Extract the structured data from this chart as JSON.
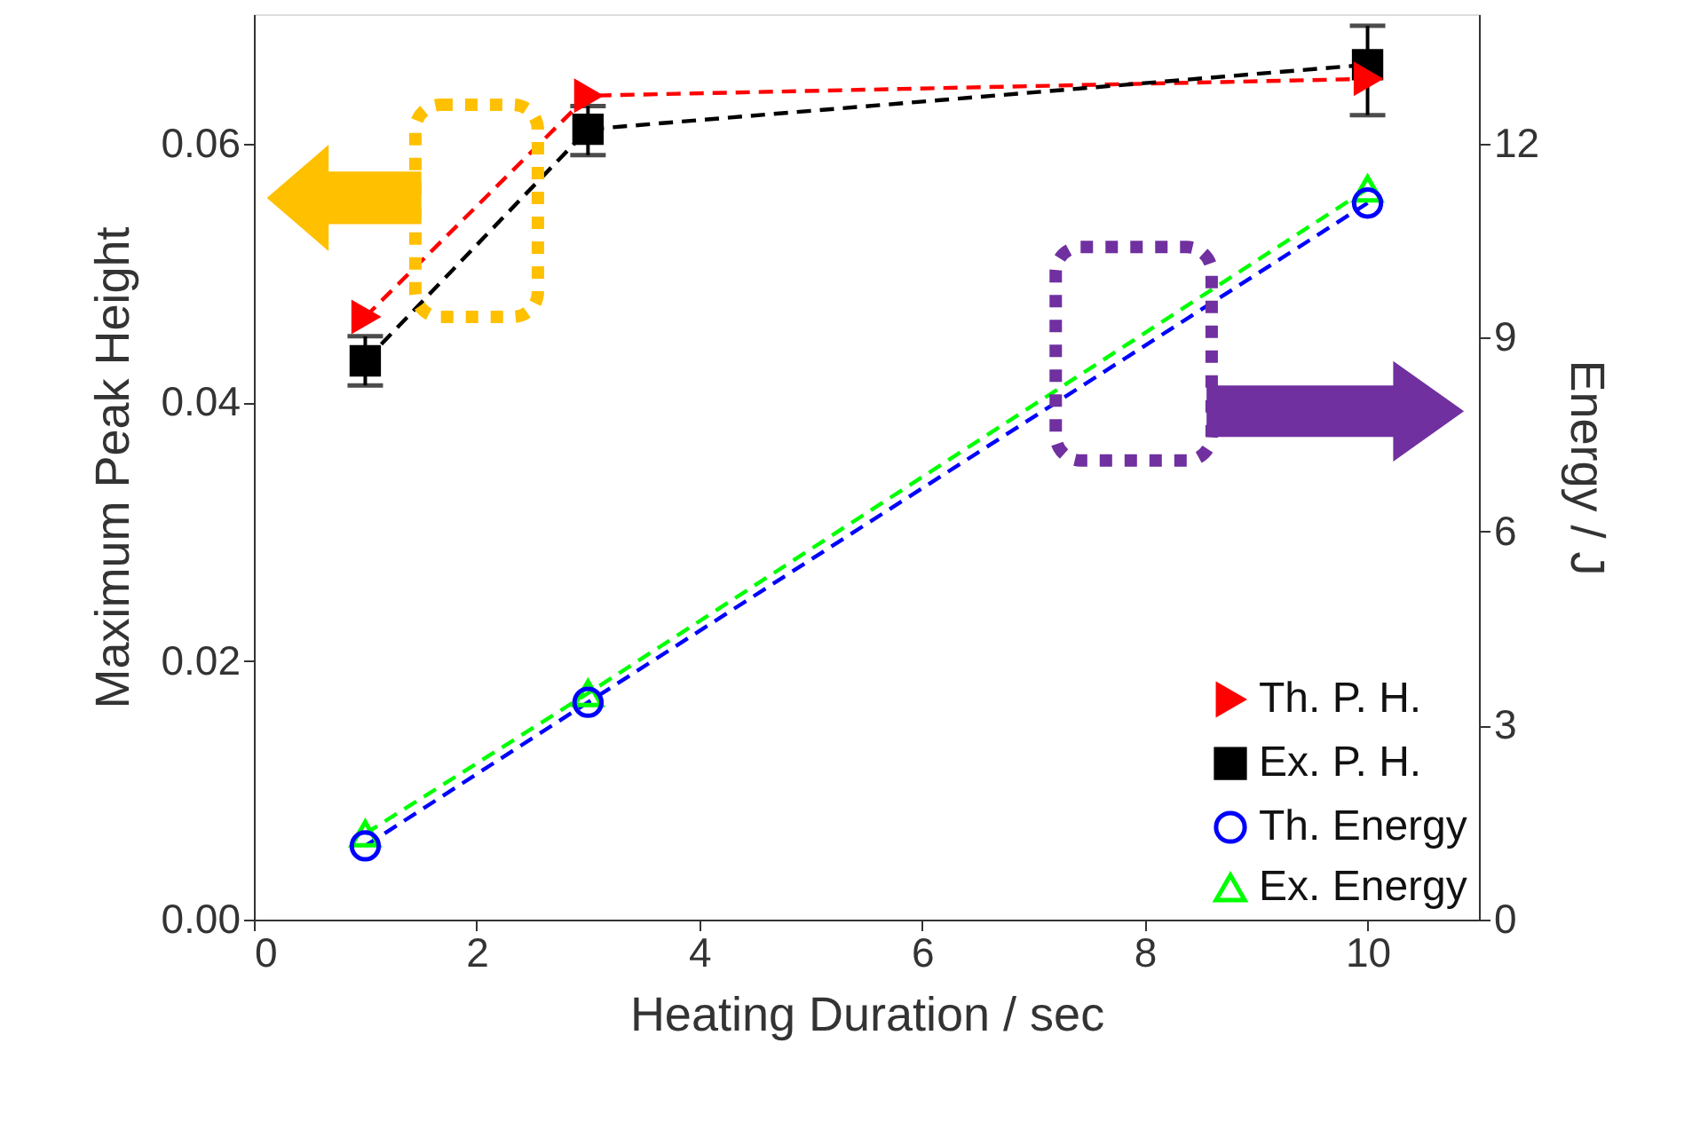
{
  "chart_data": {
    "type": "line",
    "xlabel": "Heating Duration / sec",
    "ylabel": "Maximum Peak Height",
    "y2label": "Energy / J",
    "xlim": [
      0,
      11
    ],
    "xticks": [
      0,
      2,
      4,
      6,
      8,
      10
    ],
    "ylim": [
      0,
      0.07
    ],
    "yticks": [
      {
        "value": 0,
        "label": "0.00"
      },
      {
        "value": 0.02,
        "label": "0.02"
      },
      {
        "value": 0.04,
        "label": "0.04"
      },
      {
        "value": 0.06,
        "label": "0.06"
      }
    ],
    "y2lim": [
      0,
      14
    ],
    "y2ticks": [
      0,
      3,
      6,
      9,
      12
    ],
    "grid": false,
    "legend": "bottom right",
    "line_style": "dashed",
    "series": [
      {
        "name": "Th. P. H.",
        "color": "#ff0000",
        "marker": "triangle-right",
        "x": [
          1,
          3,
          10
        ],
        "values": [
          0.0466,
          0.0637,
          0.065
        ]
      },
      {
        "name": "Ex. P. H.",
        "color": "#000000",
        "marker": "square",
        "x": [
          1,
          3,
          10
        ],
        "values": [
          0.0432,
          0.0611,
          0.0661
        ],
        "errors": [
          [
            0.0413,
            0.0451
          ],
          [
            0.0591,
            0.0629
          ],
          [
            0.0622,
            0.0691
          ]
        ]
      },
      {
        "name": "Th. Energy",
        "color": "#0000ff",
        "marker": "circle",
        "axis": "y2",
        "x": [
          1,
          3,
          10
        ],
        "values": [
          1.14,
          3.36,
          11.08
        ]
      },
      {
        "name": "Ex. Energy",
        "color": "#00ff00",
        "marker": "triangle",
        "axis": "y2",
        "x": [
          1,
          3,
          10
        ],
        "values": [
          1.33,
          3.5,
          11.3
        ]
      }
    ]
  }
}
